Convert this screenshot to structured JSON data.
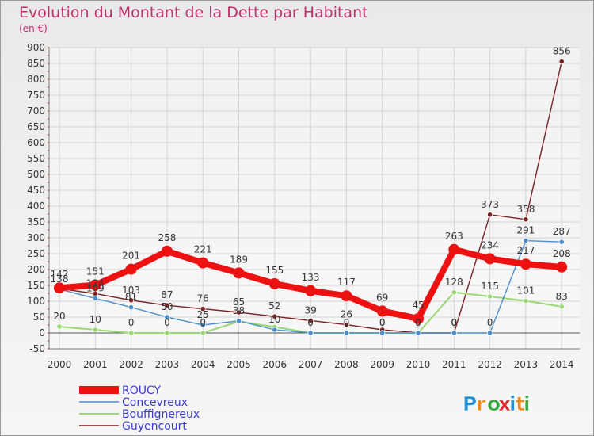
{
  "chart_data": {
    "type": "line",
    "title": "Evolution du Montant de la Dette par Habitant",
    "subtitle": "(en €)",
    "xlabel": "",
    "ylabel": "",
    "x": [
      "2000",
      "2001",
      "2002",
      "2003",
      "2004",
      "2005",
      "2006",
      "2007",
      "2008",
      "2009",
      "2010",
      "2011",
      "2012",
      "2013",
      "2014"
    ],
    "ylim": [
      -50,
      900
    ],
    "yticks": [
      "-50",
      "0",
      "50",
      "100",
      "150",
      "200",
      "250",
      "300",
      "350",
      "400",
      "450",
      "500",
      "550",
      "600",
      "650",
      "700",
      "750",
      "800",
      "850",
      "900"
    ],
    "grid": true,
    "legend_position": "bottom-left",
    "series": [
      {
        "name": "ROUCY",
        "color": "#ee1111",
        "values": [
          142,
          151,
          201,
          258,
          221,
          189,
          155,
          133,
          117,
          69,
          45,
          263,
          234,
          217,
          208
        ],
        "labels": [
          "142",
          "151",
          "201",
          "258",
          "221",
          "189",
          "155",
          "133",
          "117",
          "69",
          "45",
          "263",
          "234",
          "217",
          "208"
        ]
      },
      {
        "name": "Concevreux",
        "color": "#4a8ecb",
        "values": [
          138,
          109,
          81,
          50,
          25,
          38,
          10,
          0,
          0,
          0,
          0,
          0,
          0,
          291,
          287
        ],
        "labels": [
          "138",
          "109",
          "81",
          "50",
          "25",
          "38",
          "10",
          "0",
          "0",
          "0",
          "0",
          "0",
          "0",
          "291",
          "287"
        ]
      },
      {
        "name": "Bouffignereux",
        "color": "#99d873",
        "values": [
          20,
          10,
          0,
          0,
          0,
          36,
          19,
          0,
          0,
          0,
          0,
          128,
          115,
          101,
          83
        ],
        "labels": [
          "20",
          "10",
          "0",
          "0",
          "0",
          "",
          "",
          "",
          "0",
          "0",
          "0",
          "128",
          "115",
          "101",
          "83"
        ]
      },
      {
        "name": "Guyencourt",
        "color": "#7a2222",
        "values": [
          140,
          124,
          103,
          87,
          76,
          65,
          52,
          39,
          26,
          10,
          0,
          0,
          373,
          358,
          856
        ],
        "labels": [
          "",
          "124",
          "103",
          "87",
          "76",
          "65",
          "52",
          "39",
          "26",
          "",
          "0",
          "0",
          "373",
          "358",
          "856"
        ]
      }
    ]
  },
  "brand": {
    "logo_text": "Proxiti",
    "letter_colors": [
      "#1f8fd6",
      "#f08a1c",
      "#3aa842",
      "#e0262b",
      "#1f8fd6",
      "#f08a1c",
      "#3aa842"
    ]
  }
}
